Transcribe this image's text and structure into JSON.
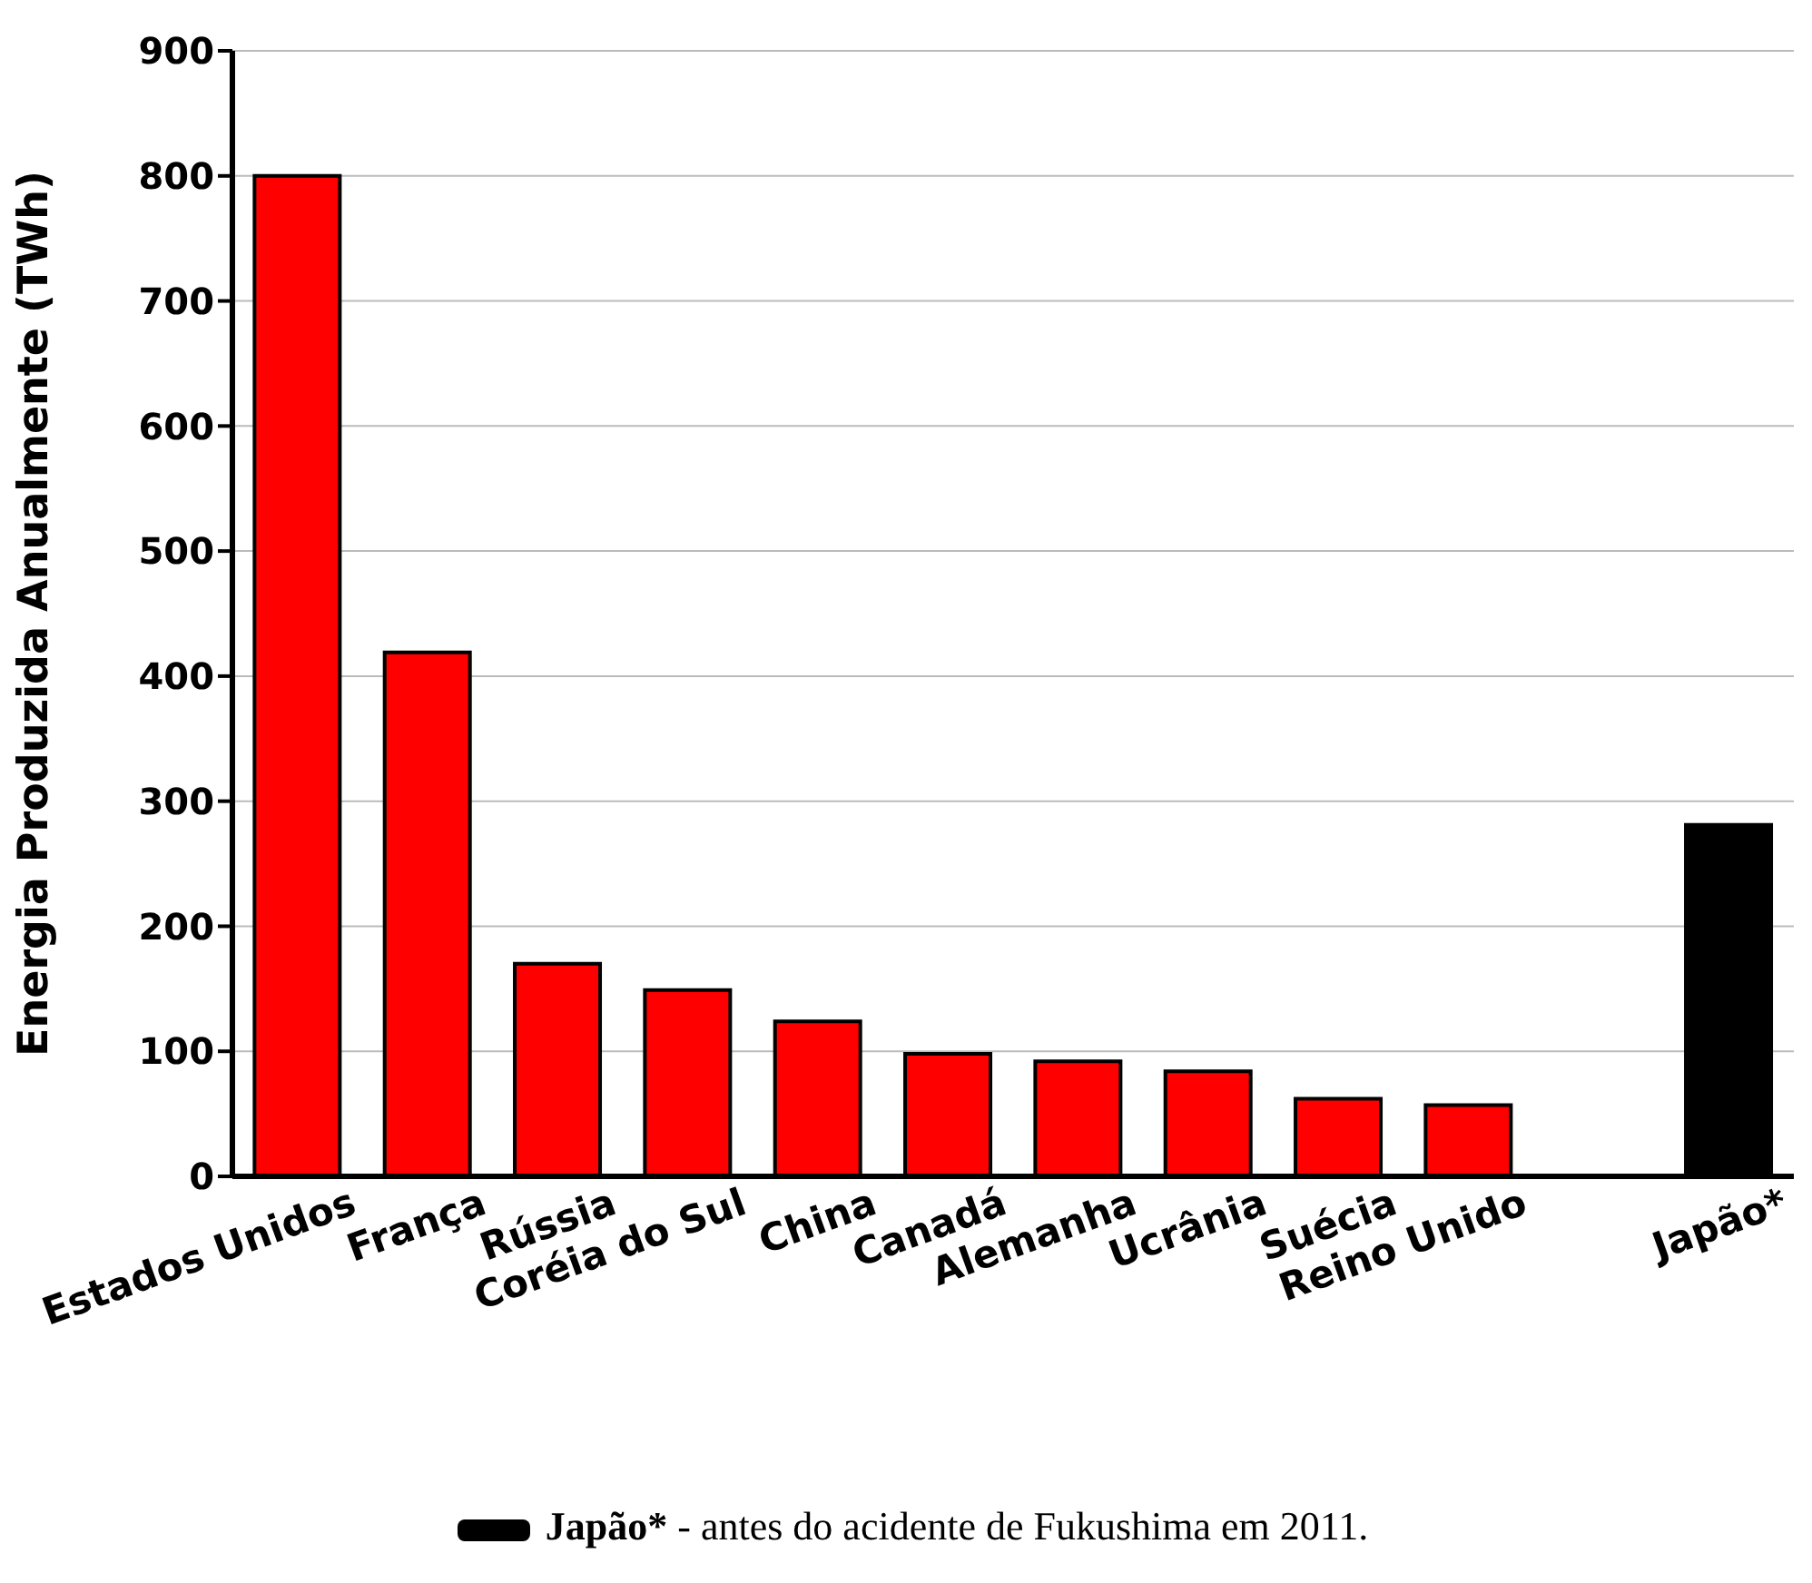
{
  "chart_data": {
    "type": "bar",
    "ylabel": "Energia Produzida Anualmente (TWh)",
    "categories": [
      "Estados Unidos",
      "França",
      "Rússia",
      "Coréia do Sul",
      "China",
      "Canadá",
      "Alemanha",
      "Ucrânia",
      "Suécia",
      "Reino Unido",
      null,
      "Japão*"
    ],
    "values": [
      800,
      419,
      170,
      149,
      124,
      98,
      92,
      84,
      62,
      57,
      null,
      281
    ],
    "colors": [
      "#ff0000",
      "#ff0000",
      "#ff0000",
      "#ff0000",
      "#ff0000",
      "#ff0000",
      "#ff0000",
      "#ff0000",
      "#ff0000",
      "#ff0000",
      "#ff0000",
      "#000000"
    ],
    "ylim": [
      0,
      900
    ],
    "yticks": [
      0,
      100,
      200,
      300,
      400,
      500,
      600,
      700,
      800,
      900
    ],
    "grid": "y",
    "annotations": [
      "Japão* - antes do acidente de Fukushima em 2011."
    ]
  }
}
